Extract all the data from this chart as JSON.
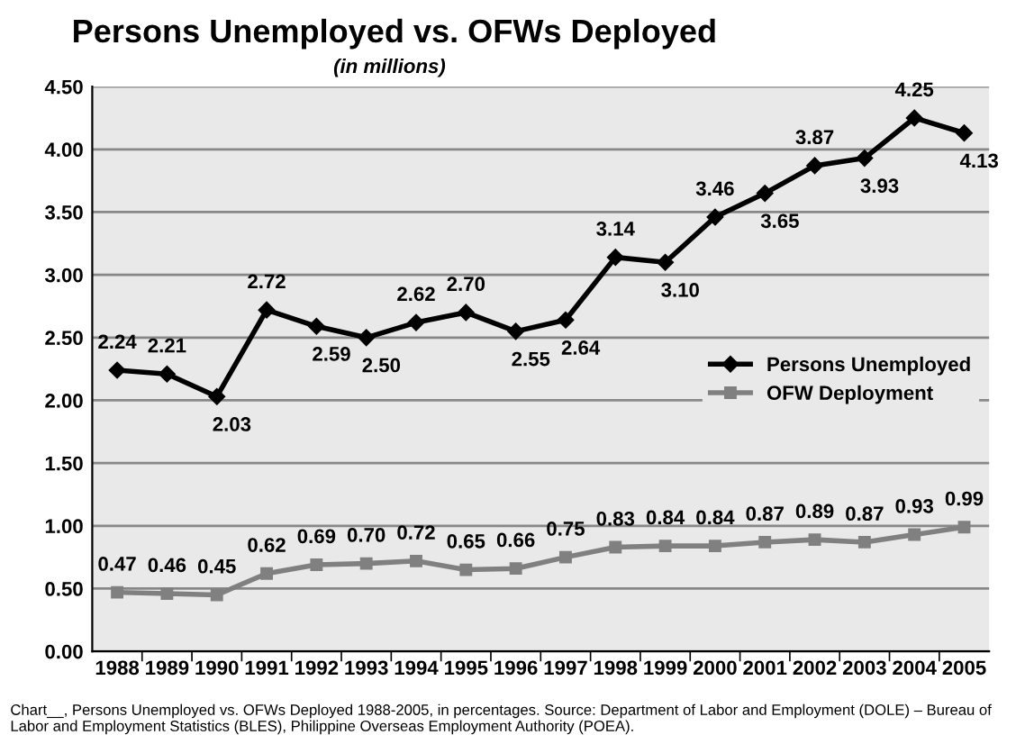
{
  "chart_data": {
    "type": "line",
    "title": "Persons Unemployed vs. OFWs Deployed",
    "subtitle": "(in millions)",
    "categories": [
      "1988",
      "1989",
      "1990",
      "1991",
      "1992",
      "1993",
      "1994",
      "1995",
      "1996",
      "1997",
      "1998",
      "1999",
      "2000",
      "2001",
      "2002",
      "2003",
      "2004",
      "2005"
    ],
    "series": [
      {
        "name": "Persons Unemployed",
        "color": "#000000",
        "marker": "diamond",
        "values": [
          2.24,
          2.21,
          2.03,
          2.72,
          2.59,
          2.5,
          2.62,
          2.7,
          2.55,
          2.64,
          3.14,
          3.1,
          3.46,
          3.65,
          3.87,
          3.93,
          4.25,
          4.13
        ],
        "value_labels": [
          "2.24",
          "2.21",
          "2.03",
          "2.72",
          "2.59",
          "2.50",
          "2.62",
          "2.70",
          "2.55",
          "2.64",
          "3.14",
          "3.10",
          "3.46",
          "3.65",
          "3.87",
          "3.93",
          "4.25",
          "4.13"
        ]
      },
      {
        "name": "OFW Deployment",
        "color": "#808080",
        "marker": "square",
        "values": [
          0.47,
          0.46,
          0.45,
          0.62,
          0.69,
          0.7,
          0.72,
          0.65,
          0.66,
          0.75,
          0.83,
          0.84,
          0.84,
          0.87,
          0.89,
          0.87,
          0.93,
          0.99
        ],
        "value_labels": [
          "0.47",
          "0.46",
          "0.45",
          "0.62",
          "0.69",
          "0.70",
          "0.72",
          "0.65",
          "0.66",
          "0.75",
          "0.83",
          "0.84",
          "0.84",
          "0.87",
          "0.89",
          "0.87",
          "0.93",
          "0.99"
        ]
      }
    ],
    "ylim": [
      0,
      4.5
    ],
    "yticks": [
      {
        "value": 0,
        "label": "0.00"
      },
      {
        "value": 0.5,
        "label": "0.50"
      },
      {
        "value": 1,
        "label": "1.00"
      },
      {
        "value": 1.5,
        "label": "1.50"
      },
      {
        "value": 2,
        "label": "2.00"
      },
      {
        "value": 2.5,
        "label": "2.50"
      },
      {
        "value": 3,
        "label": "3.00"
      },
      {
        "value": 3.5,
        "label": "3.50"
      },
      {
        "value": 4,
        "label": "4.00"
      },
      {
        "value": 4.5,
        "label": "4.50"
      }
    ],
    "grid": "y",
    "legend": "right",
    "annotations": [
      "Chart__, Persons Unemployed vs. OFWs Deployed 1988-2005, in percentages. Source: Department of Labor and Employment (DOLE) – Bureau of Labor and Employment Statistics (BLES), Philippine Overseas Employment Authority (POEA)."
    ]
  }
}
